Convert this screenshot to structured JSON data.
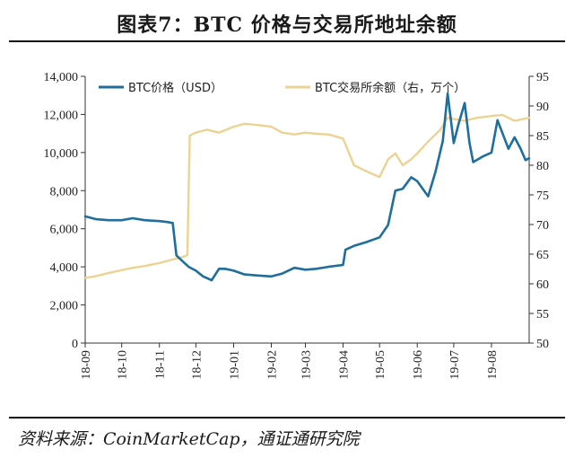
{
  "title": "图表7：BTC 价格与交易所地址余额",
  "source": "资料来源：CoinMarketCap，通证通研究院",
  "colors": {
    "price": "#1f6e9c",
    "balance": "#ecd393"
  },
  "chart_data": {
    "type": "line",
    "title": "图表7：BTC 价格与交易所地址余额",
    "x_ticks": [
      "18-09",
      "18-10",
      "18-11",
      "18-12",
      "19-01",
      "19-02",
      "19-03",
      "19-04",
      "19-05",
      "19-06",
      "19-07",
      "19-08"
    ],
    "y_left": {
      "ylim": [
        0,
        14000
      ],
      "ticks": [
        "0",
        "2,000",
        "4,000",
        "6,000",
        "8,000",
        "10,000",
        "12,000",
        "14,000"
      ]
    },
    "y_right": {
      "ylim": [
        50,
        95
      ],
      "ticks": [
        "50",
        "55",
        "60",
        "65",
        "70",
        "75",
        "80",
        "85",
        "90",
        "95"
      ]
    },
    "legend_position": "top",
    "grid": false,
    "series": [
      {
        "name": "BTC价格（USD）",
        "axis": "left",
        "x": [
          "2018-09-01",
          "2018-09-10",
          "2018-09-20",
          "2018-10-01",
          "2018-10-10",
          "2018-10-20",
          "2018-11-01",
          "2018-11-08",
          "2018-11-12",
          "2018-11-15",
          "2018-11-20",
          "2018-11-25",
          "2018-12-01",
          "2018-12-07",
          "2018-12-14",
          "2018-12-20",
          "2018-12-25",
          "2019-01-01",
          "2019-01-10",
          "2019-01-20",
          "2019-02-01",
          "2019-02-10",
          "2019-02-20",
          "2019-03-01",
          "2019-03-10",
          "2019-03-20",
          "2019-04-01",
          "2019-04-03",
          "2019-04-10",
          "2019-04-20",
          "2019-05-01",
          "2019-05-08",
          "2019-05-14",
          "2019-05-20",
          "2019-05-27",
          "2019-06-01",
          "2019-06-10",
          "2019-06-16",
          "2019-06-22",
          "2019-06-26",
          "2019-07-01",
          "2019-07-05",
          "2019-07-10",
          "2019-07-14",
          "2019-07-17",
          "2019-07-25",
          "2019-08-01",
          "2019-08-06",
          "2019-08-15",
          "2019-08-20",
          "2019-08-25",
          "2019-08-29",
          "2019-09-01"
        ],
        "values": [
          6650,
          6500,
          6450,
          6450,
          6550,
          6450,
          6400,
          6350,
          6300,
          4600,
          4300,
          4000,
          3800,
          3500,
          3300,
          3900,
          3900,
          3800,
          3600,
          3550,
          3500,
          3650,
          3950,
          3850,
          3900,
          4000,
          4100,
          4900,
          5100,
          5300,
          5550,
          6200,
          8000,
          8100,
          8700,
          8500,
          7700,
          9000,
          10600,
          13100,
          10500,
          11500,
          12600,
          10500,
          9500,
          9800,
          10000,
          11700,
          10200,
          10800,
          10200,
          9600,
          9700
        ]
      },
      {
        "name": "BTC交易所余额（右，万个）",
        "axis": "right",
        "x": [
          "2018-09-01",
          "2018-09-10",
          "2018-09-20",
          "2018-10-01",
          "2018-10-10",
          "2018-10-20",
          "2018-11-01",
          "2018-11-10",
          "2018-11-20",
          "2018-11-24",
          "2018-11-26",
          "2018-12-01",
          "2018-12-10",
          "2018-12-20",
          "2019-01-01",
          "2019-01-10",
          "2019-01-20",
          "2019-02-01",
          "2019-02-10",
          "2019-02-20",
          "2019-03-01",
          "2019-03-10",
          "2019-03-20",
          "2019-04-01",
          "2019-04-10",
          "2019-04-20",
          "2019-05-01",
          "2019-05-08",
          "2019-05-14",
          "2019-05-20",
          "2019-05-27",
          "2019-06-01",
          "2019-06-10",
          "2019-06-20",
          "2019-06-26",
          "2019-07-01",
          "2019-07-10",
          "2019-07-20",
          "2019-08-01",
          "2019-08-10",
          "2019-08-20",
          "2019-09-01"
        ],
        "values": [
          61,
          61.3,
          61.8,
          62.3,
          62.7,
          63,
          63.5,
          64,
          64.5,
          64.8,
          85,
          85.5,
          86,
          85.5,
          86.5,
          87,
          86.8,
          86.5,
          85.5,
          85.2,
          85.5,
          85.3,
          85.2,
          84.5,
          80,
          79,
          78,
          81,
          82,
          80,
          81,
          82,
          84,
          86,
          88,
          87.8,
          87.5,
          88,
          88.3,
          88.5,
          87.5,
          88
        ]
      }
    ]
  }
}
